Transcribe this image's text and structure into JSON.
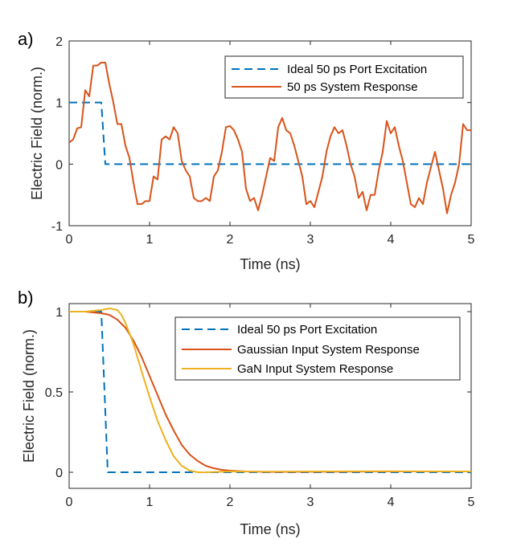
{
  "chart_data": [
    {
      "panel_label": "a)",
      "type": "line",
      "xlabel": "Time (ns)",
      "ylabel": "Electric Field (norm.)",
      "xlim": [
        0,
        5
      ],
      "ylim": [
        -1,
        2
      ],
      "xticks": [
        "0",
        "1",
        "2",
        "3",
        "4",
        "5"
      ],
      "yticks": [
        "-1",
        "0",
        "1",
        "2"
      ],
      "legend_position": "top-right",
      "grid": false,
      "series": [
        {
          "name": "Ideal 50 ps Port Excitation",
          "color": "#0072BD",
          "dash": "dashed",
          "x": [
            0,
            0.4,
            0.45,
            5
          ],
          "y": [
            1,
            1,
            0,
            0
          ]
        },
        {
          "name": "50 ps System Response",
          "color": "#D95319",
          "dash": "solid",
          "x": [
            0,
            0.05,
            0.1,
            0.15,
            0.2,
            0.25,
            0.3,
            0.35,
            0.4,
            0.45,
            0.5,
            0.55,
            0.6,
            0.65,
            0.7,
            0.75,
            0.8,
            0.85,
            0.9,
            0.95,
            1.0,
            1.05,
            1.1,
            1.15,
            1.2,
            1.25,
            1.3,
            1.35,
            1.4,
            1.45,
            1.5,
            1.55,
            1.6,
            1.65,
            1.7,
            1.75,
            1.8,
            1.85,
            1.9,
            1.95,
            2.0,
            2.05,
            2.1,
            2.15,
            2.2,
            2.25,
            2.3,
            2.35,
            2.4,
            2.45,
            2.5,
            2.55,
            2.6,
            2.65,
            2.7,
            2.75,
            2.8,
            2.85,
            2.9,
            2.95,
            3.0,
            3.05,
            3.1,
            3.15,
            3.2,
            3.25,
            3.3,
            3.35,
            3.4,
            3.45,
            3.5,
            3.55,
            3.6,
            3.65,
            3.7,
            3.75,
            3.8,
            3.85,
            3.9,
            3.95,
            4.0,
            4.05,
            4.1,
            4.15,
            4.2,
            4.25,
            4.3,
            4.35,
            4.4,
            4.45,
            4.5,
            4.55,
            4.6,
            4.65,
            4.7,
            4.75,
            4.8,
            4.85,
            4.9,
            4.95,
            5.0
          ],
          "y": [
            0.35,
            0.4,
            0.58,
            0.6,
            1.2,
            1.1,
            1.6,
            1.6,
            1.65,
            1.65,
            1.3,
            1.0,
            0.65,
            0.65,
            0.3,
            0.1,
            -0.3,
            -0.65,
            -0.65,
            -0.6,
            -0.6,
            -0.2,
            -0.25,
            0.4,
            0.45,
            0.4,
            0.6,
            0.5,
            0.05,
            -0.1,
            -0.2,
            -0.55,
            -0.6,
            -0.6,
            -0.55,
            -0.6,
            -0.2,
            -0.1,
            0.2,
            0.6,
            0.62,
            0.55,
            0.4,
            0.2,
            -0.4,
            -0.6,
            -0.55,
            -0.75,
            -0.5,
            -0.2,
            0.1,
            0.05,
            0.6,
            0.75,
            0.55,
            0.5,
            0.3,
            0.05,
            -0.2,
            -0.65,
            -0.6,
            -0.7,
            -0.45,
            -0.2,
            0.2,
            0.45,
            0.6,
            0.5,
            0.55,
            0.3,
            0.0,
            -0.2,
            -0.55,
            -0.45,
            -0.75,
            -0.5,
            -0.5,
            -0.1,
            0.2,
            0.7,
            0.5,
            0.6,
            0.3,
            0.05,
            -0.3,
            -0.65,
            -0.7,
            -0.55,
            -0.65,
            -0.3,
            -0.05,
            0.2,
            -0.1,
            -0.4,
            -0.8,
            -0.5,
            -0.3,
            0.0,
            0.65,
            0.55,
            0.55
          ]
        }
      ]
    },
    {
      "panel_label": "b)",
      "type": "line",
      "xlabel": "Time (ns)",
      "ylabel": "Electric Field (norm.)",
      "xlim": [
        0,
        5
      ],
      "ylim": [
        -0.1,
        1.05
      ],
      "xticks": [
        "0",
        "1",
        "2",
        "3",
        "4",
        "5"
      ],
      "yticks": [
        "0",
        "0.5",
        "1"
      ],
      "legend_position": "top-right",
      "grid": false,
      "series": [
        {
          "name": "Ideal 50 ps Port Excitation",
          "color": "#0072BD",
          "dash": "dashed",
          "x": [
            0,
            0.4,
            0.48,
            5
          ],
          "y": [
            1,
            1,
            0,
            0
          ]
        },
        {
          "name": "Gaussian Input System Response",
          "color": "#D95319",
          "dash": "solid",
          "x": [
            0,
            0.2,
            0.4,
            0.5,
            0.6,
            0.7,
            0.8,
            0.9,
            1.0,
            1.1,
            1.2,
            1.3,
            1.4,
            1.5,
            1.6,
            1.7,
            1.8,
            1.9,
            2.0,
            2.2,
            2.5,
            3.0,
            4.0,
            5.0
          ],
          "y": [
            1.0,
            1.0,
            0.99,
            0.98,
            0.95,
            0.9,
            0.82,
            0.72,
            0.6,
            0.48,
            0.36,
            0.26,
            0.17,
            0.11,
            0.07,
            0.04,
            0.025,
            0.015,
            0.01,
            0.005,
            0.002,
            0.003,
            0.005,
            0.005
          ]
        },
        {
          "name": "GaN Input System Response",
          "color": "#EDB120",
          "dash": "solid",
          "x": [
            0,
            0.2,
            0.4,
            0.5,
            0.6,
            0.65,
            0.7,
            0.8,
            0.9,
            1.0,
            1.1,
            1.2,
            1.3,
            1.4,
            1.5,
            1.6,
            1.7,
            1.8,
            2.0,
            2.5,
            3.0,
            4.0,
            5.0
          ],
          "y": [
            1.0,
            1.0,
            1.01,
            1.02,
            1.01,
            0.98,
            0.93,
            0.8,
            0.63,
            0.47,
            0.32,
            0.2,
            0.1,
            0.04,
            0.01,
            0.0,
            0.0,
            0.002,
            0.005,
            0.004,
            0.005,
            0.006,
            0.005
          ]
        }
      ]
    }
  ]
}
